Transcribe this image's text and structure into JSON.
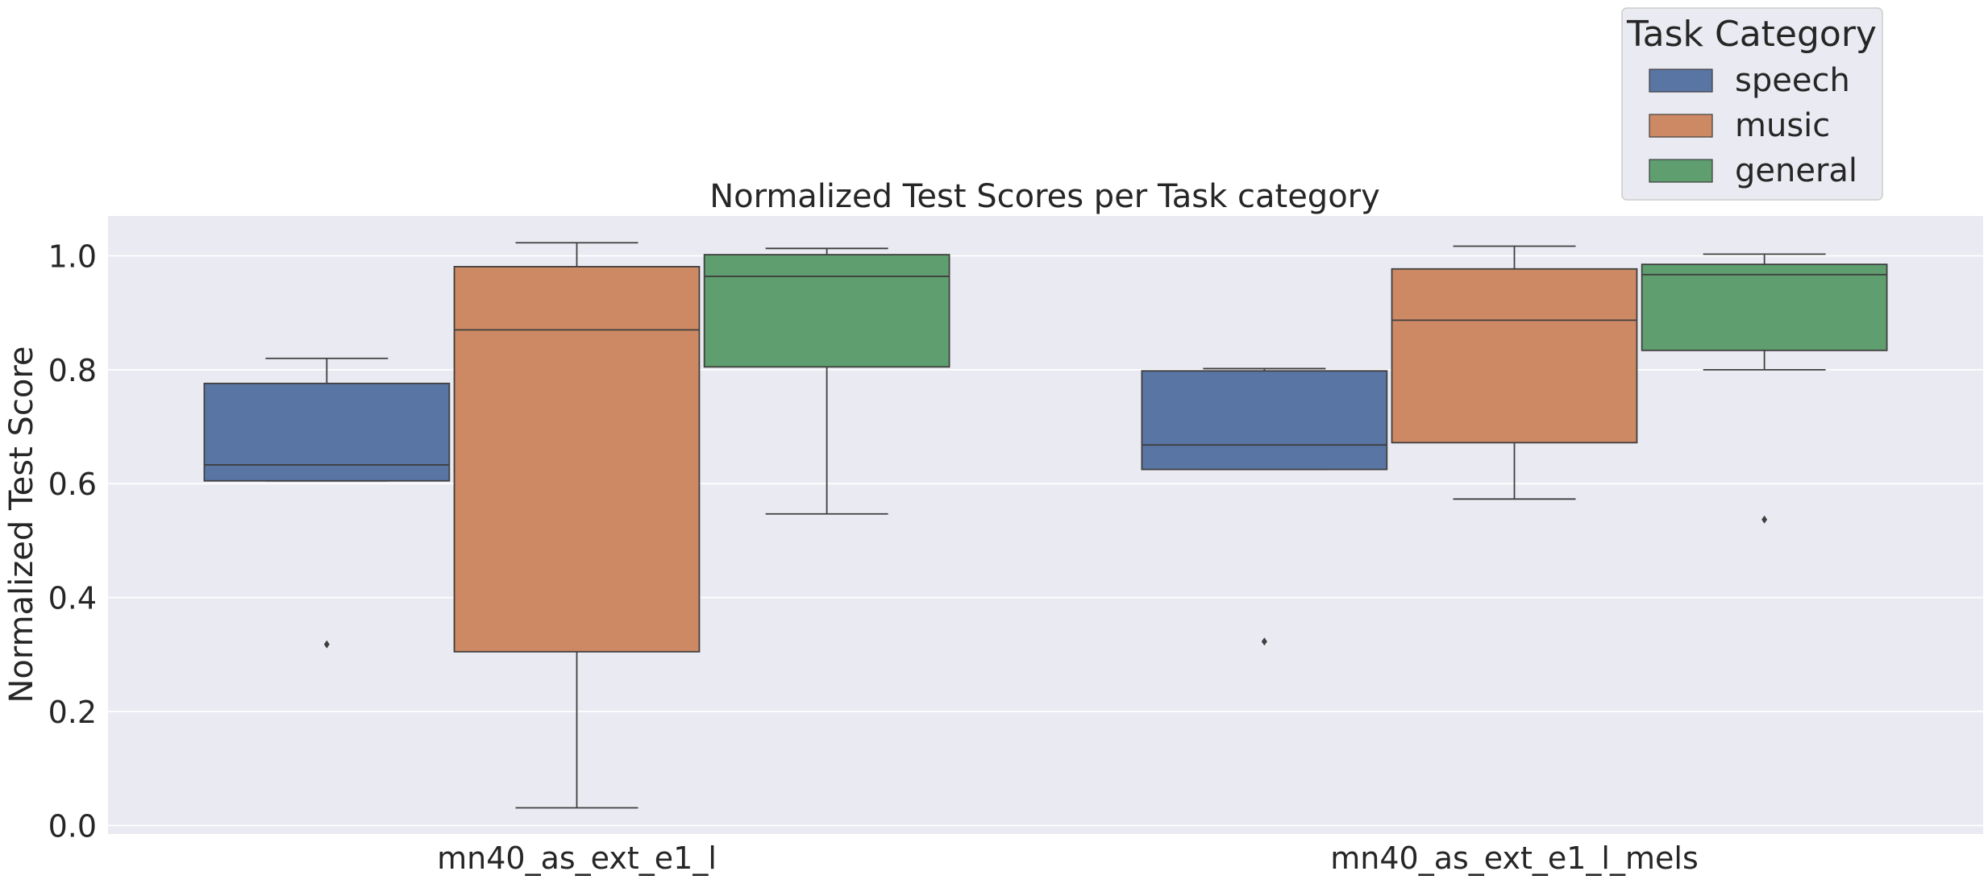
{
  "chart_data": {
    "type": "box",
    "title": "Normalized Test Scores per Task category",
    "xlabel": "",
    "ylabel": "Normalized Test Score",
    "ylim": [
      -0.015,
      1.07
    ],
    "yticks": [
      0.0,
      0.2,
      0.4,
      0.6,
      0.8,
      1.0
    ],
    "ytick_labels": [
      "0.0",
      "0.2",
      "0.4",
      "0.6",
      "0.8",
      "1.0"
    ],
    "grid": true,
    "legend": {
      "title": "Task Category",
      "placement": "top-right, above plot"
    },
    "categories": [
      "mn40_as_ext_e1_l",
      "mn40_as_ext_e1_l_mels"
    ],
    "series": [
      {
        "name": "speech",
        "color": "#5975A4",
        "boxes": [
          {
            "whisker_low": 0.605,
            "q1": 0.605,
            "median": 0.633,
            "q3": 0.776,
            "whisker_high": 0.82,
            "outliers": [
              0.318
            ]
          },
          {
            "whisker_low": 0.625,
            "q1": 0.625,
            "median": 0.668,
            "q3": 0.798,
            "whisker_high": 0.802,
            "outliers": [
              0.323
            ]
          }
        ]
      },
      {
        "name": "music",
        "color": "#CC8963",
        "boxes": [
          {
            "whisker_low": 0.031,
            "q1": 0.305,
            "median": 0.87,
            "q3": 0.981,
            "whisker_high": 1.023,
            "outliers": []
          },
          {
            "whisker_low": 0.573,
            "q1": 0.672,
            "median": 0.887,
            "q3": 0.977,
            "whisker_high": 1.017,
            "outliers": []
          }
        ]
      },
      {
        "name": "general",
        "color": "#5F9E6E",
        "boxes": [
          {
            "whisker_low": 0.547,
            "q1": 0.805,
            "median": 0.964,
            "q3": 1.002,
            "whisker_high": 1.013,
            "outliers": []
          },
          {
            "whisker_low": 0.8,
            "q1": 0.834,
            "median": 0.967,
            "q3": 0.985,
            "whisker_high": 1.003,
            "outliers": [
              0.537
            ]
          }
        ]
      }
    ]
  }
}
